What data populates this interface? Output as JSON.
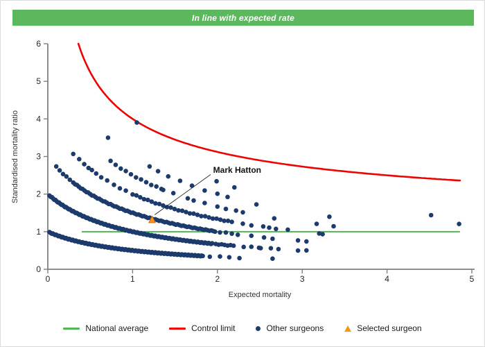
{
  "header": {
    "title": "In line with expected rate",
    "bg_color": "#5cb85c",
    "text_color": "#ffffff"
  },
  "chart_data": {
    "type": "scatter",
    "xlabel": "Expected mortality",
    "ylabel": "Standardised mortality ratio",
    "xlim": [
      0,
      5
    ],
    "ylim": [
      0,
      6
    ],
    "xticks": [
      0,
      1,
      2,
      3,
      4,
      5
    ],
    "yticks": [
      0,
      1,
      2,
      3,
      4,
      5,
      6
    ],
    "grid": false,
    "axis_color": "#7f7f7f",
    "tick_label_color": "#262626",
    "axis_title_color": "#333333",
    "national_average": {
      "label": "National average",
      "y": 1.0,
      "x_start": 0.4,
      "x_end": 4.86,
      "color": "#53b553"
    },
    "control_limit": {
      "label": "Control limit",
      "formula": "y = 1 + 3/sqrt(x)",
      "x_start": 0.36,
      "x_end": 4.86,
      "sample_step": 0.03,
      "color": "#ee0202"
    },
    "other_surgeons": {
      "label": "Other surgeons",
      "color": "#1d3a6d",
      "dot_radius": 3.3,
      "band_formula": "y = k / (x + 1), k = observed deaths per band",
      "bands": [
        {
          "k": 1,
          "dense": [
            [
              0.02,
              1.83,
              0.013
            ]
          ],
          "sparse_x": [
            1.91,
            2.03,
            2.14,
            2.26,
            2.65
          ]
        },
        {
          "k": 2,
          "dense": [
            [
              0.02,
              1.94,
              0.014
            ],
            [
              1.98,
              2.2,
              0.035
            ]
          ],
          "sparse_x": [
            2.31,
            2.4,
            2.49,
            2.51,
            2.63,
            2.72,
            2.95,
            3.05
          ]
        },
        {
          "k": 3,
          "dense": [
            [
              0.3,
              1.98,
              0.022
            ]
          ],
          "sparse_x": [
            0.1,
            0.14,
            0.18,
            0.22,
            0.26,
            2.03,
            2.1,
            2.17,
            2.24,
            2.4,
            2.55,
            2.65,
            2.95,
            3.05
          ]
        },
        {
          "k": 4,
          "dense": [
            [
              1.0,
              2.2,
              0.045
            ]
          ],
          "sparse_x": [
            0.3,
            0.37,
            0.43,
            0.48,
            0.52,
            0.57,
            0.63,
            0.7,
            0.78,
            0.85,
            0.92,
            2.3,
            2.4,
            2.54,
            2.61,
            2.69,
            2.83,
            3.2,
            3.24
          ]
        },
        {
          "k": 5,
          "dense": [
            [
              0.74,
              1.35,
              0.06
            ]
          ],
          "sparse_x": [
            1.36,
            1.48,
            1.65,
            1.72,
            1.85,
            2.0,
            2.1,
            2.22,
            2.3,
            2.67,
            3.17,
            3.37
          ]
        },
        {
          "k": 6,
          "dense": [],
          "sparse_x": [
            0.71,
            1.2,
            1.3,
            1.42,
            1.56,
            1.7,
            1.85,
            2.0,
            2.12,
            2.46,
            3.32
          ]
        },
        {
          "k": 7,
          "dense": [],
          "sparse_x": [
            1.99,
            2.2,
            4.85
          ]
        },
        {
          "k": 8,
          "dense": [],
          "sparse_x": [
            1.05,
            4.52
          ]
        }
      ]
    },
    "selected_surgeon": {
      "label": "Selected surgeon",
      "name": "Mark Hatton",
      "x": 1.23,
      "y": 1.31,
      "fill": "#f6941e",
      "edge": "#c9701a"
    },
    "annotation": {
      "text": "Mark Hatton",
      "text_x": 1.95,
      "text_y": 2.57,
      "line_from": [
        1.92,
        2.52
      ],
      "line_to": [
        1.26,
        1.45
      ],
      "line_color": "#222222"
    }
  },
  "legend": {
    "items": [
      {
        "label": "National average",
        "marker": "line",
        "color": "#53b553"
      },
      {
        "label": "Control limit",
        "marker": "line",
        "color": "#ee0202"
      },
      {
        "label": "Other surgeons",
        "marker": "dot",
        "color": "#1d3a6d"
      },
      {
        "label": "Selected surgeon",
        "marker": "triangle",
        "color": "#f6941e"
      }
    ]
  }
}
